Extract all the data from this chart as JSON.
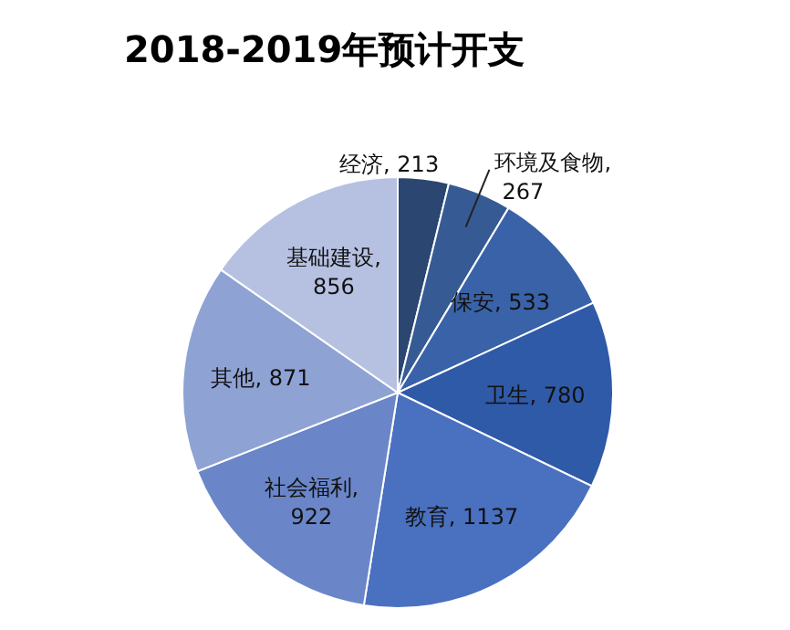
{
  "chart_data": {
    "type": "pie",
    "title": "2018-2019年预计开支",
    "categories": [
      "经济",
      "环境及食物",
      "保安",
      "卫生",
      "教育",
      "社会福利",
      "其他",
      "基础建设"
    ],
    "values": [
      213,
      267,
      533,
      780,
      1137,
      922,
      871,
      856
    ],
    "value_labels": [
      ", 213",
      ", 267",
      ", 533",
      ", 780",
      ", 1137",
      ", 922",
      ", 871",
      ", 856"
    ],
    "legend": false,
    "colors": [
      "#2b4670",
      "#365b94",
      "#3962a8",
      "#2f5aa8",
      "#4a70c0",
      "#6a86c8",
      "#8ea2d4",
      "#b6c1e2"
    ]
  }
}
